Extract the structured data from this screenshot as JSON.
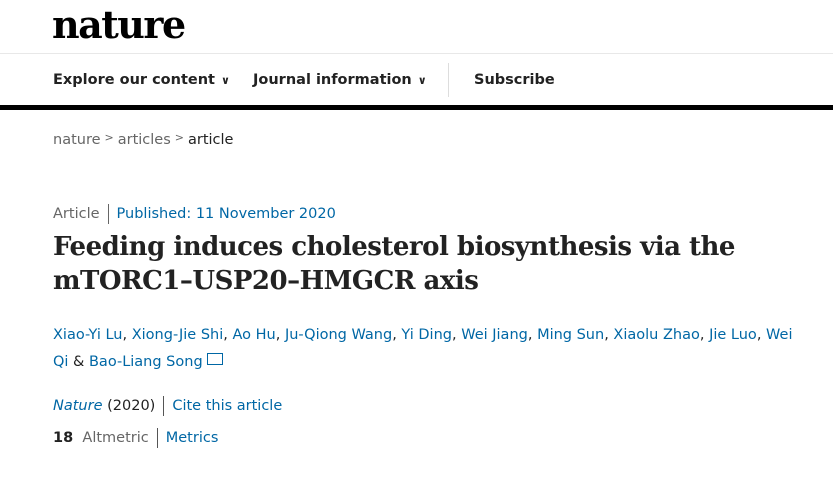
{
  "header": {
    "logo": "nature",
    "nav": [
      {
        "label": "Explore our content"
      },
      {
        "label": "Journal information"
      },
      {
        "label": "Subscribe"
      }
    ],
    "chevron": "⌄"
  },
  "breadcrumb": [
    "nature",
    "articles",
    "article"
  ],
  "article": {
    "type": "Article",
    "published": "Published: 11 November 2020",
    "title": "Feeding induces cholesterol biosynthesis via the mTORC1–USP20–HMGCR axis",
    "authors": [
      "Xiao-Yi Lu",
      "Xiong-Jie Shi",
      "Ao Hu",
      "Ju-Qiong Wang",
      "Yi Ding",
      "Wei Jiang",
      "Ming Sun",
      "Xiaolu Zhao",
      "Jie Luo",
      "Wei Qi",
      "Bao-Liang Song"
    ],
    "journal": "Nature",
    "year": "(2020)",
    "cite_label": "Cite this article",
    "altmetric_count": "18",
    "altmetric_label": "Altmetric",
    "metrics_label": "Metrics"
  }
}
